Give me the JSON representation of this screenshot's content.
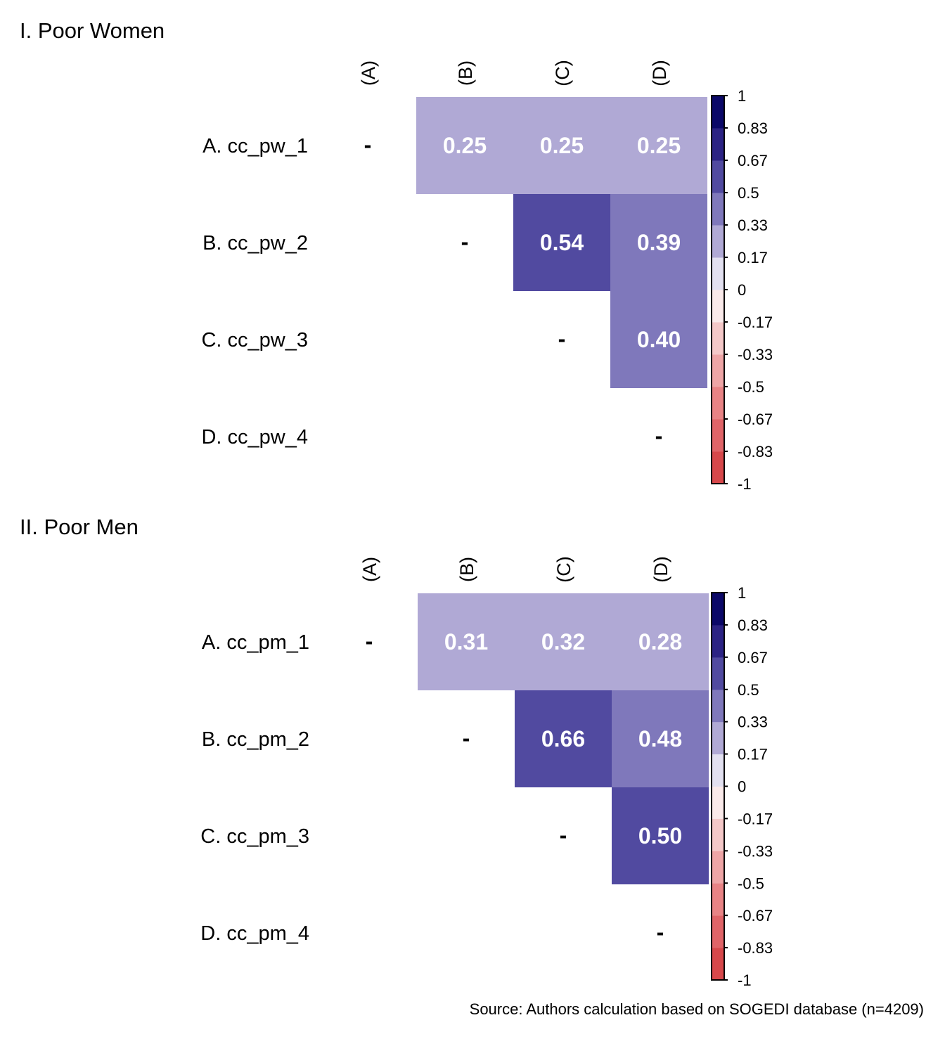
{
  "chart_data": [
    {
      "type": "heatmap",
      "title": "I. Poor Women",
      "row_labels": [
        "A. cc_pw_1",
        "B. cc_pw_2",
        "C. cc_pw_3",
        "D. cc_pw_4"
      ],
      "col_labels": [
        "(A)",
        "(B)",
        "(C)",
        "(D)"
      ],
      "diagonal_label": "-",
      "matrix": [
        [
          null,
          0.25,
          0.25,
          0.25
        ],
        [
          null,
          null,
          0.54,
          0.39
        ],
        [
          null,
          null,
          null,
          0.4
        ],
        [
          null,
          null,
          null,
          null
        ]
      ],
      "value_labels": [
        [
          null,
          "0.25",
          "0.25",
          "0.25"
        ],
        [
          null,
          null,
          "0.54",
          "0.39"
        ],
        [
          null,
          null,
          null,
          "0.40"
        ],
        [
          null,
          null,
          null,
          null
        ]
      ],
      "colorbar": {
        "range": [
          -1,
          1
        ],
        "ticks": [
          "1",
          "0.83",
          "0.67",
          "0.5",
          "0.33",
          "0.17",
          "0",
          "-0.17",
          "-0.33",
          "-0.5",
          "-0.67",
          "-0.83",
          "-1"
        ]
      }
    },
    {
      "type": "heatmap",
      "title": "II. Poor Men",
      "row_labels": [
        "A. cc_pm_1",
        "B. cc_pm_2",
        "C. cc_pm_3",
        "D. cc_pm_4"
      ],
      "col_labels": [
        "(A)",
        "(B)",
        "(C)",
        "(D)"
      ],
      "diagonal_label": "-",
      "matrix": [
        [
          null,
          0.31,
          0.32,
          0.28
        ],
        [
          null,
          null,
          0.66,
          0.48
        ],
        [
          null,
          null,
          null,
          0.5
        ],
        [
          null,
          null,
          null,
          null
        ]
      ],
      "value_labels": [
        [
          null,
          "0.31",
          "0.32",
          "0.28"
        ],
        [
          null,
          null,
          "0.66",
          "0.48"
        ],
        [
          null,
          null,
          null,
          "0.50"
        ],
        [
          null,
          null,
          null,
          null
        ]
      ],
      "colorbar": {
        "range": [
          -1,
          1
        ],
        "ticks": [
          "1",
          "0.83",
          "0.67",
          "0.5",
          "0.33",
          "0.17",
          "0",
          "-0.17",
          "-0.33",
          "-0.5",
          "-0.67",
          "-0.83",
          "-1"
        ]
      }
    }
  ],
  "colors": {
    "bins": [
      "#d7484b",
      "#e06468",
      "#e88385",
      "#eea5a6",
      "#f4c8c8",
      "#faeaea",
      "#e2e0f0",
      "#b0a9d5",
      "#7f78bb",
      "#514aa0",
      "#2c2384",
      "#0b0868"
    ]
  },
  "source_note": "Source: Authors calculation based on SOGEDI database (n=4209)"
}
